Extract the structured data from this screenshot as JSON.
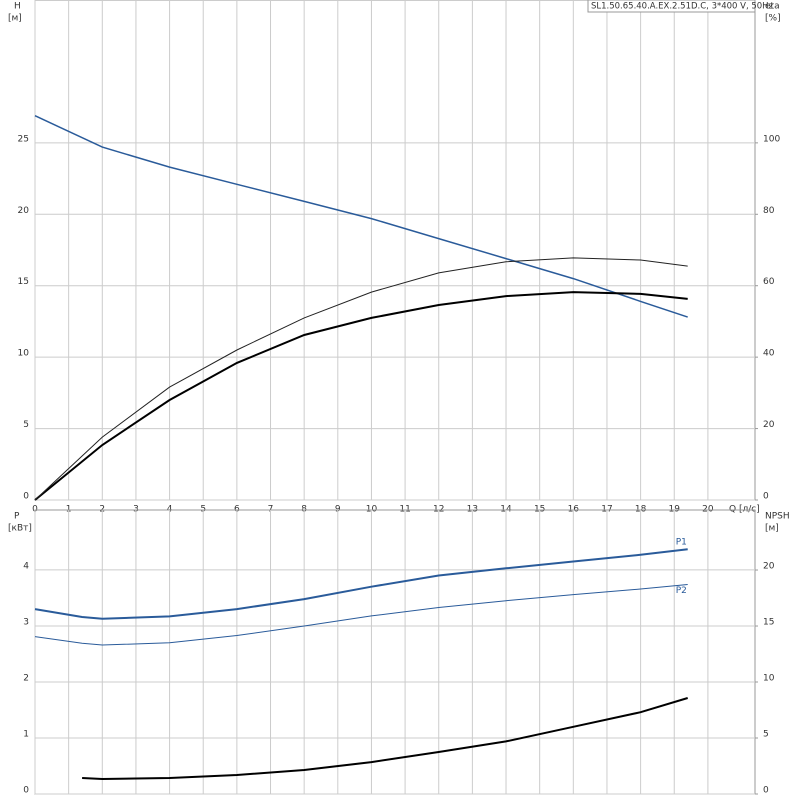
{
  "chart_data": [
    {
      "type": "line",
      "title": "SL1.50.65.40.A.EX.2.51D.C, 3*400 V, 50Hz",
      "ylabel": "H",
      "ylabel_unit": "[м]",
      "y2label": "eta",
      "y2label_unit": "[%]",
      "xlabel": "Q [л/с]",
      "x": [
        0,
        2,
        4,
        6,
        8,
        10,
        12,
        14,
        16,
        18,
        19.4
      ],
      "xlim": [
        0,
        21.4
      ],
      "xticks": [
        0,
        1,
        2,
        3,
        4,
        5,
        6,
        7,
        8,
        9,
        10,
        11,
        12,
        13,
        14,
        15,
        16,
        17,
        18,
        19,
        20
      ],
      "ylim": [
        0,
        35
      ],
      "yticks": [
        0,
        5,
        10,
        15,
        20,
        25
      ],
      "y2lim": [
        0,
        140
      ],
      "y2ticks": [
        0,
        20,
        40,
        60,
        80,
        100
      ],
      "grid": true,
      "series": [
        {
          "color": "#2a5b9a",
          "values": [
            26.9,
            24.7,
            23.3,
            22.1,
            20.9,
            19.7,
            18.3,
            16.9,
            15.5,
            13.9,
            12.8
          ]
        },
        {
          "color": "#000000",
          "axis": "y2",
          "values": [
            0,
            15.4,
            28,
            38.4,
            46.2,
            51,
            54.6,
            57.1,
            58.2,
            57.7,
            56.3
          ]
        },
        {
          "color": "#222222",
          "axis": "y2",
          "values": [
            0,
            17.6,
            31.6,
            42,
            51,
            58.2,
            63.6,
            66.7,
            67.8,
            67.2,
            65.5
          ]
        }
      ]
    },
    {
      "type": "line",
      "ylabel": "P",
      "ylabel_unit": "[кВт]",
      "y2label": "NPSH",
      "y2label_unit": "[м]",
      "x": [
        0,
        1.4,
        2,
        4,
        6,
        8,
        10,
        12,
        14,
        16,
        18,
        19.4
      ],
      "xlim": [
        0,
        21.4
      ],
      "xticks": [
        0,
        1,
        2,
        3,
        4,
        5,
        6,
        7,
        8,
        9,
        10,
        11,
        12,
        13,
        14,
        15,
        16,
        17,
        18,
        19,
        20
      ],
      "ylim": [
        0,
        5.07
      ],
      "yticks": [
        0,
        1,
        2,
        3,
        4
      ],
      "y2lim": [
        0,
        25.36
      ],
      "y2ticks": [
        0,
        5,
        10,
        15,
        20
      ],
      "grid": true,
      "series": [
        {
          "name": "P1",
          "color": "#2a5b9a",
          "values": [
            3.3,
            3.16,
            3.13,
            3.17,
            3.3,
            3.48,
            3.7,
            3.9,
            4.03,
            4.15,
            4.27,
            4.37
          ]
        },
        {
          "name": "P2",
          "color": "#2a5b9a",
          "values": [
            2.81,
            2.69,
            2.66,
            2.7,
            2.83,
            3.0,
            3.18,
            3.33,
            3.45,
            3.56,
            3.66,
            3.74
          ]
        },
        {
          "color": "#000000",
          "axis": "y2",
          "values": [
            null,
            1.43,
            1.34,
            1.43,
            1.7,
            2.14,
            2.85,
            3.75,
            4.7,
            6.0,
            7.3,
            8.57
          ]
        }
      ]
    }
  ]
}
